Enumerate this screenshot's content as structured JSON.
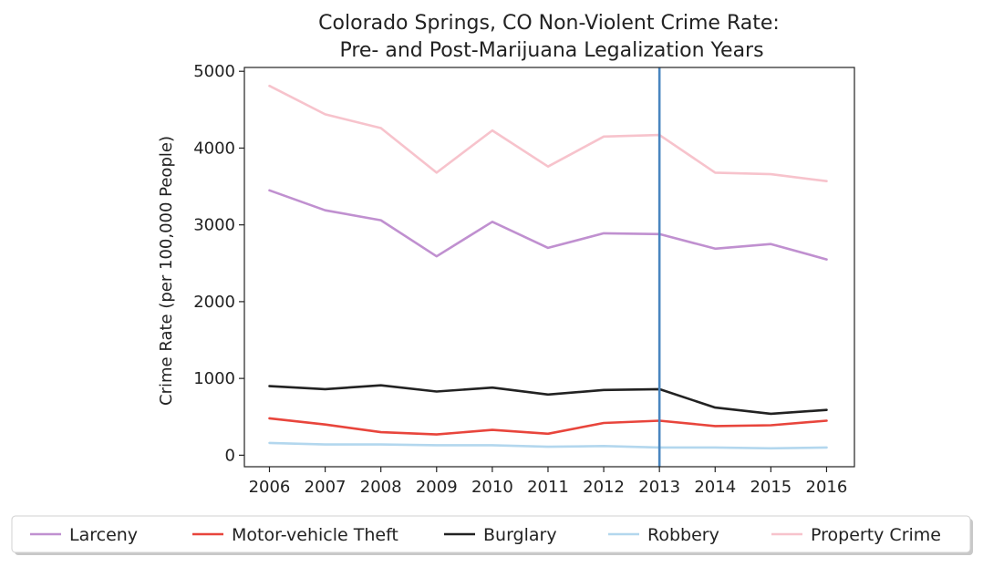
{
  "chart_data": {
    "type": "line",
    "title": "Colorado Springs, CO Non-Violent Crime Rate:",
    "subtitle": "Pre- and Post-Marijuana Legalization Years",
    "xlabel": "",
    "ylabel": "Crime Rate (per 100,000 People)",
    "x": [
      2006,
      2007,
      2008,
      2009,
      2010,
      2011,
      2012,
      2013,
      2014,
      2015,
      2016
    ],
    "xlim": [
      2005.55,
      2016.5
    ],
    "ylim": [
      -150,
      5050
    ],
    "yticks": [
      0,
      1000,
      2000,
      3000,
      4000,
      5000
    ],
    "grid": false,
    "legend_position": "bottom",
    "reference_line": {
      "x": 2013,
      "color": "#4a86c0"
    },
    "series": [
      {
        "name": "Larceny",
        "color": "#c090d0",
        "values": [
          3450,
          3190,
          3060,
          2590,
          3040,
          2700,
          2890,
          2880,
          2690,
          2750,
          2550
        ]
      },
      {
        "name": "Motor-vehicle Theft",
        "color": "#e8453c",
        "values": [
          480,
          400,
          300,
          270,
          330,
          280,
          420,
          450,
          380,
          390,
          450
        ]
      },
      {
        "name": "Burglary",
        "color": "#222222",
        "values": [
          900,
          860,
          910,
          830,
          880,
          790,
          850,
          860,
          620,
          540,
          590
        ]
      },
      {
        "name": "Robbery",
        "color": "#b3d7ee",
        "values": [
          160,
          140,
          140,
          130,
          130,
          110,
          120,
          100,
          100,
          90,
          100
        ]
      },
      {
        "name": "Property Crime",
        "color": "#f7c3cc",
        "values": [
          4810,
          4440,
          4260,
          3680,
          4230,
          3760,
          4150,
          4170,
          3680,
          3660,
          3570
        ]
      }
    ]
  }
}
